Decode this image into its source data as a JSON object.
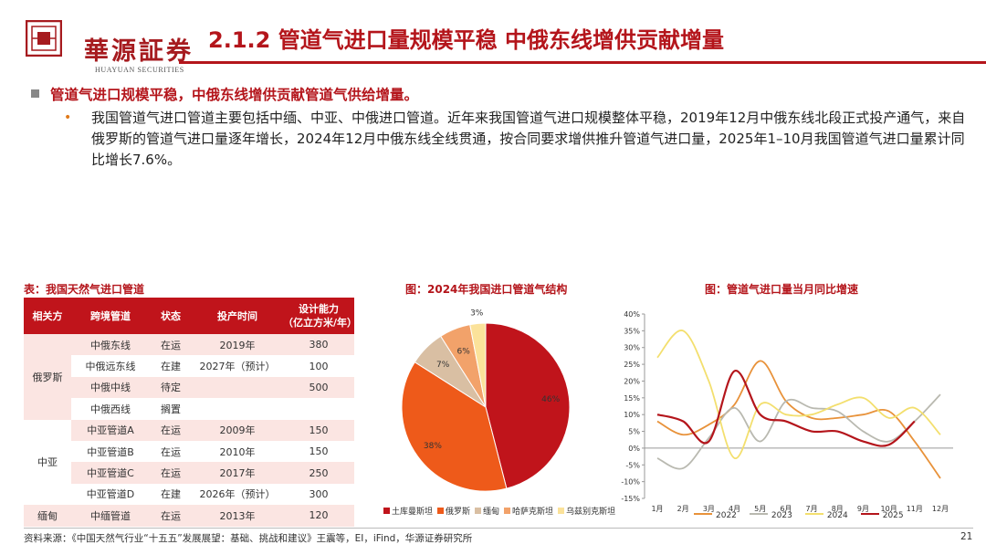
{
  "header": {
    "logo_cn": "華源証券",
    "logo_en": "HUAYUAN SECURITIES",
    "title": "2.1.2 管道气进口量规模平稳 中俄东线增供贡献增量"
  },
  "bullets": {
    "main": "管道气进口规模平稳，中俄东线增供贡献管道气供给增量。",
    "sub": "我国管道气进口管道主要包括中缅、中亚、中俄进口管道。近年来我国管道气进口规模整体平稳，2019年12月中俄东线北段正式投产通气，来自俄罗斯的管道气进口量逐年增长，2024年12月中俄东线全线贯通，按合同要求增供推升管道气进口量，2025年1–10月我国管道气进口量累计同比增长7.6%。"
  },
  "table": {
    "caption": "表：我国天然气进口管道",
    "headers": [
      "相关方",
      "跨境管道",
      "状态",
      "投产时间",
      "设计能力",
      "（亿立方米/年）"
    ],
    "groups": [
      "俄罗斯",
      "中亚",
      "缅甸"
    ],
    "rows": [
      [
        "中俄东线",
        "在运",
        "2019年",
        "380"
      ],
      [
        "中俄远东线",
        "在建",
        "2027年（预计）",
        "100"
      ],
      [
        "中俄中线",
        "待定",
        "",
        "500"
      ],
      [
        "中俄西线",
        "搁置",
        "",
        ""
      ],
      [
        "中亚管道A",
        "在运",
        "2009年",
        "150"
      ],
      [
        "中亚管道B",
        "在运",
        "2010年",
        "150"
      ],
      [
        "中亚管道C",
        "在运",
        "2017年",
        "250"
      ],
      [
        "中亚管道D",
        "在建",
        "2026年（预计）",
        "300"
      ],
      [
        "中缅管道",
        "在运",
        "2013年",
        "120"
      ]
    ]
  },
  "pie": {
    "caption": "图：2024年我国进口管道气结构",
    "colors": {
      "turkmenistan": "#c0141b",
      "russia": "#ee5a1a",
      "myanmar": "#d9bfa3",
      "kazakhstan": "#f2a26a",
      "uzbekistan": "#fbe29a"
    }
  },
  "line": {
    "caption": "图：管道气进口量当月同比增速",
    "colors": {
      "y2022": "#e8923a",
      "y2023": "#b9b9b0",
      "y2024": "#f3df6e",
      "y2025": "#b4151b"
    }
  },
  "chart_data": [
    {
      "type": "pie",
      "categories": [
        "土库曼斯坦",
        "俄罗斯",
        "缅甸",
        "哈萨克斯坦",
        "乌兹别克斯坦"
      ],
      "values": [
        46,
        38,
        7,
        6,
        3
      ],
      "labels": [
        "46%",
        "38%",
        "7%",
        "6%",
        "3%"
      ],
      "legend": "bottom"
    },
    {
      "type": "line",
      "categories": [
        "1月",
        "2月",
        "3月",
        "4月",
        "5月",
        "6月",
        "7月",
        "8月",
        "9月",
        "10月",
        "11月",
        "12月"
      ],
      "series": [
        {
          "name": "2022",
          "values": [
            8,
            4,
            7,
            13,
            26,
            14,
            9,
            9,
            10,
            11,
            2,
            -9
          ]
        },
        {
          "name": "2023",
          "values": [
            -3,
            -6,
            3,
            12,
            2,
            14,
            12,
            11,
            5,
            2,
            8,
            16
          ]
        },
        {
          "name": "2024",
          "values": [
            27,
            35,
            20,
            -3,
            13,
            10,
            10,
            13,
            15,
            9,
            12,
            4
          ]
        },
        {
          "name": "2025",
          "values": [
            10,
            8,
            2,
            23,
            10,
            8,
            5,
            5,
            2,
            1,
            8,
            null
          ]
        }
      ],
      "ylim": [
        -15,
        40
      ],
      "yticks": [
        "-15%",
        "-10%",
        "-5%",
        "0%",
        "5%",
        "10%",
        "15%",
        "20%",
        "25%",
        "30%",
        "35%",
        "40%"
      ],
      "legend": "bottom"
    }
  ],
  "footer": {
    "source": "资料来源：《中国天然气行业“十五五”发展展望：基础、挑战和建议》王震等，EI，iFind，华源证券研究所",
    "page": "21"
  }
}
